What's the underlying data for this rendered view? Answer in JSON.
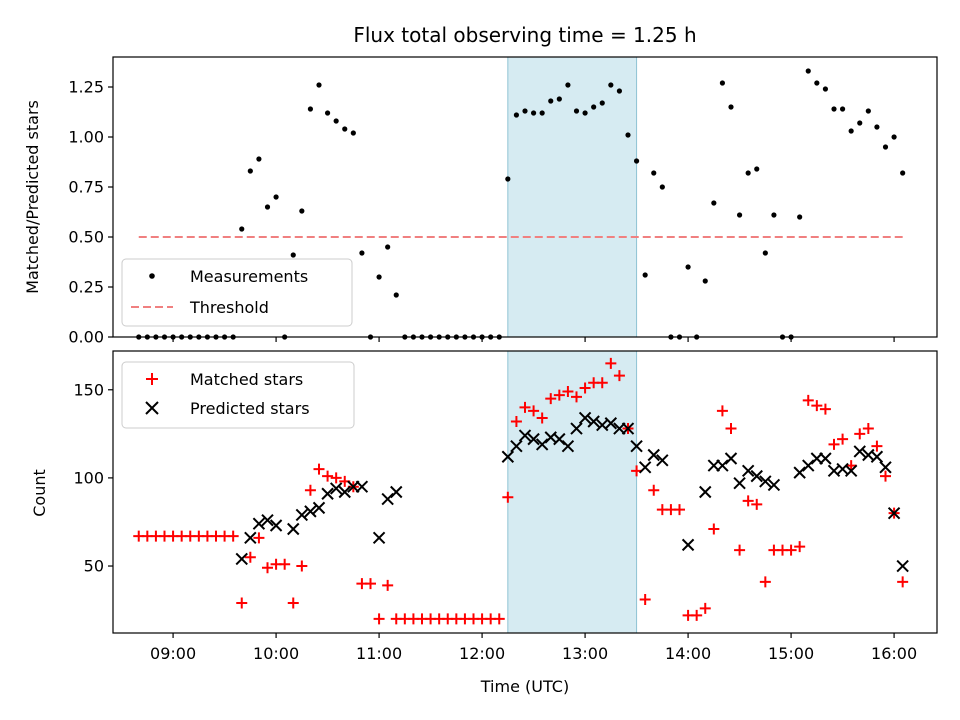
{
  "chart_data": [
    {
      "type": "scatter",
      "title": "Flux total observing time = 1.25 h",
      "xlabel": "",
      "ylabel": "Matched/Predicted stars",
      "x_unit": "time of day (UTC)",
      "xlim": [
        "08:25",
        "16:25"
      ],
      "ylim": [
        0,
        1.4
      ],
      "yticks": [
        "0.00",
        "0.25",
        "0.50",
        "0.75",
        "1.00",
        "1.25"
      ],
      "grid": false,
      "legend_position": "lower-left",
      "shaded_span": [
        "12:15",
        "13:30"
      ],
      "series": [
        {
          "name": "Measurements",
          "marker": "dot",
          "color": "#000000",
          "points": [
            [
              "08:40",
              0
            ],
            [
              "08:45",
              0
            ],
            [
              "08:50",
              0
            ],
            [
              "08:55",
              0
            ],
            [
              "09:00",
              0
            ],
            [
              "09:05",
              0
            ],
            [
              "09:10",
              0
            ],
            [
              "09:15",
              0
            ],
            [
              "09:20",
              0
            ],
            [
              "09:25",
              0
            ],
            [
              "09:30",
              0
            ],
            [
              "09:35",
              0
            ],
            [
              "09:40",
              0.54
            ],
            [
              "09:45",
              0.83
            ],
            [
              "09:50",
              0.89
            ],
            [
              "09:55",
              0.65
            ],
            [
              "10:00",
              0.7
            ],
            [
              "10:05",
              0
            ],
            [
              "10:10",
              0.41
            ],
            [
              "10:15",
              0.63
            ],
            [
              "10:20",
              1.14
            ],
            [
              "10:25",
              1.26
            ],
            [
              "10:30",
              1.12
            ],
            [
              "10:35",
              1.08
            ],
            [
              "10:40",
              1.04
            ],
            [
              "10:45",
              1.02
            ],
            [
              "10:50",
              0.42
            ],
            [
              "10:55",
              0
            ],
            [
              "11:00",
              0.3
            ],
            [
              "11:05",
              0.45
            ],
            [
              "11:10",
              0.21
            ],
            [
              "11:15",
              0
            ],
            [
              "11:20",
              0
            ],
            [
              "11:25",
              0
            ],
            [
              "11:30",
              0
            ],
            [
              "11:35",
              0
            ],
            [
              "11:40",
              0
            ],
            [
              "11:45",
              0
            ],
            [
              "11:50",
              0
            ],
            [
              "11:55",
              0
            ],
            [
              "12:00",
              0
            ],
            [
              "12:05",
              0
            ],
            [
              "12:10",
              0
            ],
            [
              "12:15",
              0.79
            ],
            [
              "12:20",
              1.11
            ],
            [
              "12:25",
              1.13
            ],
            [
              "12:30",
              1.12
            ],
            [
              "12:35",
              1.12
            ],
            [
              "12:40",
              1.18
            ],
            [
              "12:45",
              1.19
            ],
            [
              "12:50",
              1.26
            ],
            [
              "12:55",
              1.13
            ],
            [
              "13:00",
              1.12
            ],
            [
              "13:05",
              1.15
            ],
            [
              "13:10",
              1.17
            ],
            [
              "13:15",
              1.26
            ],
            [
              "13:20",
              1.23
            ],
            [
              "13:25",
              1.01
            ],
            [
              "13:30",
              0.88
            ],
            [
              "13:35",
              0.31
            ],
            [
              "13:40",
              0.82
            ],
            [
              "13:45",
              0.75
            ],
            [
              "13:50",
              0
            ],
            [
              "13:55",
              0
            ],
            [
              "14:00",
              0.35
            ],
            [
              "14:05",
              0
            ],
            [
              "14:10",
              0.28
            ],
            [
              "14:15",
              0.67
            ],
            [
              "14:20",
              1.27
            ],
            [
              "14:25",
              1.15
            ],
            [
              "14:30",
              0.61
            ],
            [
              "14:35",
              0.82
            ],
            [
              "14:40",
              0.84
            ],
            [
              "14:45",
              0.42
            ],
            [
              "14:50",
              0.61
            ],
            [
              "14:55",
              0
            ],
            [
              "15:00",
              0
            ],
            [
              "15:05",
              0.6
            ],
            [
              "15:10",
              1.33
            ],
            [
              "15:15",
              1.27
            ],
            [
              "15:20",
              1.24
            ],
            [
              "15:25",
              1.14
            ],
            [
              "15:30",
              1.14
            ],
            [
              "15:35",
              1.03
            ],
            [
              "15:40",
              1.07
            ],
            [
              "15:45",
              1.13
            ],
            [
              "15:50",
              1.05
            ],
            [
              "15:55",
              0.95
            ],
            [
              "16:00",
              1.0
            ],
            [
              "16:05",
              0.82
            ]
          ]
        },
        {
          "name": "Threshold",
          "marker": "dashed-line",
          "color": "#f08080",
          "points": [
            [
              "08:40",
              0.5
            ],
            [
              "16:05",
              0.5
            ]
          ]
        }
      ]
    },
    {
      "type": "scatter",
      "title": "",
      "xlabel": "Time (UTC)",
      "ylabel": "Count",
      "x_unit": "time of day (UTC)",
      "xlim": [
        "08:25",
        "16:25"
      ],
      "ylim": [
        12,
        172
      ],
      "xticks": [
        "09:00",
        "10:00",
        "11:00",
        "12:00",
        "13:00",
        "14:00",
        "15:00",
        "16:00"
      ],
      "yticks": [
        "50",
        "100",
        "150"
      ],
      "grid": false,
      "legend_position": "upper-left",
      "shaded_span": [
        "12:15",
        "13:30"
      ],
      "series": [
        {
          "name": "Matched stars",
          "marker": "plus",
          "color": "#ff0000",
          "points": [
            [
              "08:40",
              67
            ],
            [
              "08:45",
              67
            ],
            [
              "08:50",
              67
            ],
            [
              "08:55",
              67
            ],
            [
              "09:00",
              67
            ],
            [
              "09:05",
              67
            ],
            [
              "09:10",
              67
            ],
            [
              "09:15",
              67
            ],
            [
              "09:20",
              67
            ],
            [
              "09:25",
              67
            ],
            [
              "09:30",
              67
            ],
            [
              "09:35",
              67
            ],
            [
              "09:40",
              29
            ],
            [
              "09:45",
              55
            ],
            [
              "09:50",
              66
            ],
            [
              "09:55",
              49
            ],
            [
              "10:00",
              51
            ],
            [
              "10:05",
              51
            ],
            [
              "10:10",
              29
            ],
            [
              "10:15",
              50
            ],
            [
              "10:20",
              93
            ],
            [
              "10:25",
              105
            ],
            [
              "10:30",
              101
            ],
            [
              "10:35",
              100
            ],
            [
              "10:40",
              98
            ],
            [
              "10:45",
              95
            ],
            [
              "10:50",
              40
            ],
            [
              "10:55",
              40
            ],
            [
              "11:00",
              20
            ],
            [
              "11:05",
              39
            ],
            [
              "11:10",
              20
            ],
            [
              "11:15",
              20
            ],
            [
              "11:20",
              20
            ],
            [
              "11:25",
              20
            ],
            [
              "11:30",
              20
            ],
            [
              "11:35",
              20
            ],
            [
              "11:40",
              20
            ],
            [
              "11:45",
              20
            ],
            [
              "11:50",
              20
            ],
            [
              "11:55",
              20
            ],
            [
              "12:00",
              20
            ],
            [
              "12:05",
              20
            ],
            [
              "12:10",
              20
            ],
            [
              "12:15",
              89
            ],
            [
              "12:20",
              132
            ],
            [
              "12:25",
              140
            ],
            [
              "12:30",
              138
            ],
            [
              "12:35",
              134
            ],
            [
              "12:40",
              145
            ],
            [
              "12:45",
              147
            ],
            [
              "12:50",
              149
            ],
            [
              "12:55",
              146
            ],
            [
              "13:00",
              151
            ],
            [
              "13:05",
              154
            ],
            [
              "13:10",
              154
            ],
            [
              "13:15",
              165
            ],
            [
              "13:20",
              158
            ],
            [
              "13:25",
              128
            ],
            [
              "13:30",
              104
            ],
            [
              "13:35",
              31
            ],
            [
              "13:40",
              93
            ],
            [
              "13:45",
              82
            ],
            [
              "13:50",
              82
            ],
            [
              "13:55",
              82
            ],
            [
              "14:00",
              22
            ],
            [
              "14:05",
              22
            ],
            [
              "14:10",
              26
            ],
            [
              "14:15",
              71
            ],
            [
              "14:20",
              138
            ],
            [
              "14:25",
              128
            ],
            [
              "14:30",
              59
            ],
            [
              "14:35",
              87
            ],
            [
              "14:40",
              85
            ],
            [
              "14:45",
              41
            ],
            [
              "14:50",
              59
            ],
            [
              "14:55",
              59
            ],
            [
              "15:00",
              59
            ],
            [
              "15:05",
              61
            ],
            [
              "15:10",
              144
            ],
            [
              "15:15",
              141
            ],
            [
              "15:20",
              139
            ],
            [
              "15:25",
              119
            ],
            [
              "15:30",
              122
            ],
            [
              "15:35",
              107
            ],
            [
              "15:40",
              125
            ],
            [
              "15:45",
              128
            ],
            [
              "15:50",
              118
            ],
            [
              "15:55",
              101
            ],
            [
              "16:00",
              80
            ],
            [
              "16:05",
              41
            ]
          ]
        },
        {
          "name": "Predicted stars",
          "marker": "x",
          "color": "#000000",
          "points": [
            [
              "09:40",
              54
            ],
            [
              "09:45",
              66
            ],
            [
              "09:50",
              74
            ],
            [
              "09:55",
              76
            ],
            [
              "10:00",
              73
            ],
            [
              "10:10",
              71
            ],
            [
              "10:15",
              79
            ],
            [
              "10:20",
              81
            ],
            [
              "10:25",
              83
            ],
            [
              "10:30",
              91
            ],
            [
              "10:35",
              94
            ],
            [
              "10:40",
              92
            ],
            [
              "10:45",
              95
            ],
            [
              "10:50",
              95
            ],
            [
              "11:00",
              66
            ],
            [
              "11:05",
              88
            ],
            [
              "11:10",
              92
            ],
            [
              "12:15",
              112
            ],
            [
              "12:20",
              118
            ],
            [
              "12:25",
              124
            ],
            [
              "12:30",
              122
            ],
            [
              "12:35",
              119
            ],
            [
              "12:40",
              123
            ],
            [
              "12:45",
              122
            ],
            [
              "12:50",
              118
            ],
            [
              "12:55",
              128
            ],
            [
              "13:00",
              134
            ],
            [
              "13:05",
              132
            ],
            [
              "13:10",
              130
            ],
            [
              "13:15",
              131
            ],
            [
              "13:20",
              128
            ],
            [
              "13:25",
              128
            ],
            [
              "13:30",
              118
            ],
            [
              "13:35",
              106
            ],
            [
              "13:40",
              113
            ],
            [
              "13:45",
              110
            ],
            [
              "14:00",
              62
            ],
            [
              "14:10",
              92
            ],
            [
              "14:15",
              107
            ],
            [
              "14:20",
              107
            ],
            [
              "14:25",
              111
            ],
            [
              "14:30",
              97
            ],
            [
              "14:35",
              104
            ],
            [
              "14:40",
              101
            ],
            [
              "14:45",
              98
            ],
            [
              "14:50",
              96
            ],
            [
              "15:05",
              103
            ],
            [
              "15:10",
              107
            ],
            [
              "15:15",
              111
            ],
            [
              "15:20",
              111
            ],
            [
              "15:25",
              104
            ],
            [
              "15:30",
              105
            ],
            [
              "15:35",
              104
            ],
            [
              "15:40",
              115
            ],
            [
              "15:45",
              113
            ],
            [
              "15:50",
              112
            ],
            [
              "15:55",
              106
            ],
            [
              "16:00",
              80
            ],
            [
              "16:05",
              50
            ]
          ]
        }
      ]
    }
  ]
}
